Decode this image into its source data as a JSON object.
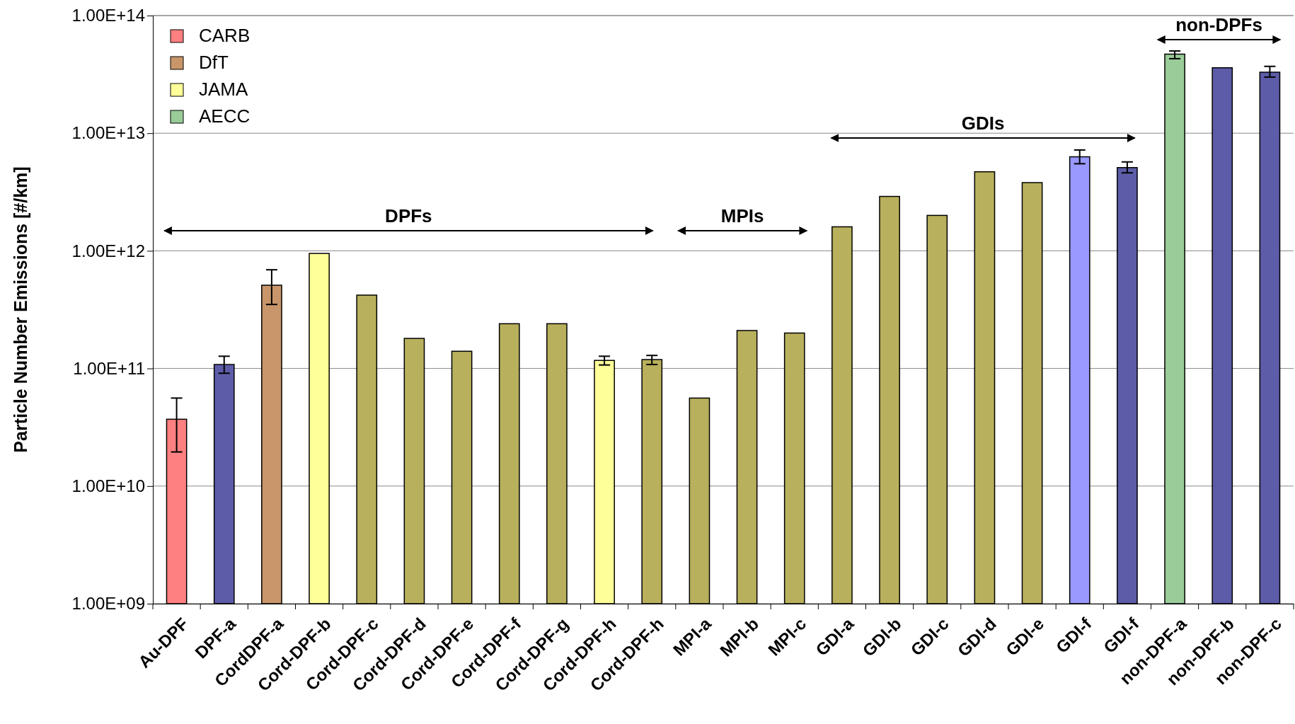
{
  "chart_data": {
    "type": "bar",
    "ylabel": "Particle Number Emissions [#/km]",
    "categories": [
      "Au-DPF",
      "DPF-a",
      "CordDPF-a",
      "Cord-DPF-b",
      "Cord-DPF-c",
      "Cord-DPF-d",
      "Cord-DPF-e",
      "Cord-DPF-f",
      "Cord-DPF-g",
      "Cord-DPF-h",
      "Cord-DPF-h",
      "MPI-a",
      "MPI-b",
      "MPI-c",
      "GDI-a",
      "GDI-b",
      "GDI-c",
      "GDI-d",
      "GDI-e",
      "GDI-f",
      "GDI-f",
      "non-DPF-a",
      "non-DPF-b",
      "non-DPF-c"
    ],
    "series": [
      {
        "name": "CARB",
        "color": "#ff8080",
        "values": [
          37000000000.0,
          null,
          null,
          null,
          null,
          null,
          null,
          null,
          null,
          null,
          null,
          null,
          null,
          null,
          null,
          null,
          null,
          null,
          null,
          null,
          null,
          null,
          null,
          null
        ],
        "errors": [
          [
            19500000000.0,
            56000000000.0
          ],
          null,
          null,
          null,
          null,
          null,
          null,
          null,
          null,
          null,
          null,
          null,
          null,
          null,
          null,
          null,
          null,
          null,
          null,
          null,
          null,
          null,
          null,
          null
        ]
      },
      {
        "color": "#9999ff",
        "colors": [
          null,
          "#5c5ca8",
          null,
          null,
          null,
          null,
          null,
          null,
          null,
          null,
          null,
          null,
          null,
          null,
          null,
          null,
          null,
          null,
          null,
          null,
          "#5c5ca8",
          null,
          "#5c5ca8",
          "#5c5ca8"
        ],
        "values": [
          null,
          108000000000.0,
          null,
          null,
          null,
          null,
          null,
          null,
          null,
          null,
          null,
          null,
          null,
          null,
          null,
          null,
          null,
          null,
          null,
          6300000000000.0,
          5100000000000.0,
          null,
          36000000000000.0,
          33000000000000.0
        ],
        "errors": [
          null,
          [
            91000000000.0,
            127000000000.0
          ],
          null,
          null,
          null,
          null,
          null,
          null,
          null,
          null,
          null,
          null,
          null,
          null,
          null,
          null,
          null,
          null,
          null,
          [
            5500000000000.0,
            7200000000000.0
          ],
          [
            4600000000000.0,
            5700000000000.0
          ],
          null,
          null,
          [
            30000000000000.0,
            37000000000000.0
          ]
        ]
      },
      {
        "name": "DfT",
        "color": "#c8966a",
        "values": [
          null,
          null,
          510000000000.0,
          null,
          null,
          null,
          null,
          null,
          null,
          null,
          null,
          null,
          null,
          null,
          null,
          null,
          null,
          null,
          null,
          null,
          null,
          null,
          null,
          null
        ],
        "errors": [
          null,
          null,
          [
            350000000000.0,
            690000000000.0
          ],
          null,
          null,
          null,
          null,
          null,
          null,
          null,
          null,
          null,
          null,
          null,
          null,
          null,
          null,
          null,
          null,
          null,
          null,
          null,
          null,
          null
        ]
      },
      {
        "name": "JAMA",
        "color": "#ffff99",
        "colors": [
          null,
          null,
          null,
          "#ffff99",
          "#b8b05c",
          "#b8b05c",
          "#b8b05c",
          "#b8b05c",
          "#b8b05c",
          "#ffff99",
          "#b8b05c",
          "#b8b05c",
          "#b8b05c",
          "#b8b05c",
          "#b8b05c",
          "#b8b05c",
          "#b8b05c",
          "#b8b05c",
          "#b8b05c",
          null,
          null,
          null,
          null,
          null
        ],
        "values": [
          null,
          null,
          null,
          950000000000.0,
          420000000000.0,
          180000000000.0,
          140000000000.0,
          240000000000.0,
          240000000000.0,
          117000000000.0,
          119000000000.0,
          56000000000.0,
          210000000000.0,
          200000000000.0,
          1600000000000.0,
          2900000000000.0,
          2000000000000.0,
          4700000000000.0,
          3800000000000.0,
          null,
          null,
          null,
          null,
          null
        ],
        "errors": [
          null,
          null,
          null,
          null,
          null,
          null,
          null,
          null,
          null,
          [
            107000000000.0,
            127000000000.0
          ],
          [
            108000000000.0,
            129000000000.0
          ],
          null,
          null,
          null,
          null,
          null,
          null,
          null,
          null,
          null,
          null,
          null,
          null,
          null
        ]
      },
      {
        "name": "AECC",
        "color": "#99cc99",
        "values": [
          null,
          null,
          null,
          null,
          null,
          null,
          null,
          null,
          null,
          null,
          null,
          null,
          null,
          null,
          null,
          null,
          null,
          null,
          null,
          null,
          null,
          47000000000000.0,
          null,
          null
        ],
        "errors": [
          null,
          null,
          null,
          null,
          null,
          null,
          null,
          null,
          null,
          null,
          null,
          null,
          null,
          null,
          null,
          null,
          null,
          null,
          null,
          null,
          null,
          [
            43000000000000.0,
            50000000000000.0
          ],
          null,
          null
        ]
      }
    ],
    "annotations": [
      "DPFs",
      "MPIs",
      "GDIs",
      "non-DPFs"
    ],
    "log": true,
    "ylim": [
      1000000000.0,
      100000000000000.0
    ],
    "yticks": [
      {
        "value": 1000000000.0,
        "label": "1.00E+09"
      },
      {
        "value": 10000000000.0,
        "label": "1.00E+10"
      },
      {
        "value": 100000000000.0,
        "label": "1.00E+11"
      },
      {
        "value": 1000000000000.0,
        "label": "1.00E+12"
      },
      {
        "value": 10000000000000.0,
        "label": "1.00E+13"
      },
      {
        "value": 100000000000000.0,
        "label": "1.00E+14"
      }
    ],
    "grid": "y",
    "legend": "top left"
  }
}
